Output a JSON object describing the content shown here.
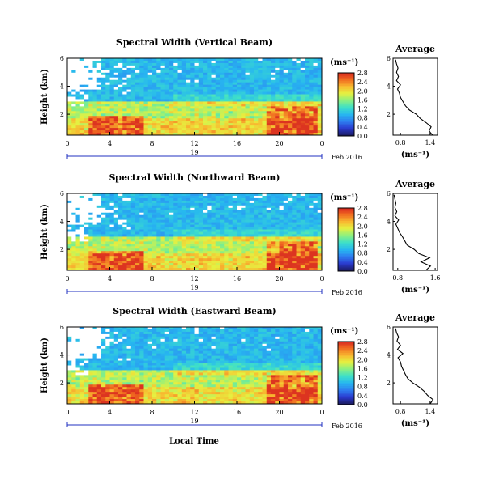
{
  "colors": {
    "colormap": [
      "#1a1a5e",
      "#2b3bd0",
      "#2e7ef0",
      "#27b7f0",
      "#3ee0c8",
      "#8cf080",
      "#e6f040",
      "#f8b830",
      "#f06a20",
      "#d42020"
    ],
    "nodata": "#ffffff",
    "line": "#000000",
    "date_axis": "#2030c0"
  },
  "footer": {
    "xlabel": "Local Time"
  },
  "chart_data": [
    {
      "type": "heatmap",
      "title": "Spectral Width (Vertical Beam)",
      "ylabel": "Height (km)",
      "ylim": [
        0.5,
        6
      ],
      "yticks": [
        "2",
        "4",
        "6"
      ],
      "xlim": [
        0,
        24
      ],
      "xticks": [
        "0",
        "4",
        "8",
        "12",
        "16",
        "20",
        "0"
      ],
      "date_ticks": [
        "19"
      ],
      "date_label": "Feb 2016",
      "colorbar": {
        "unit": "(ms⁻¹)",
        "range": [
          0,
          2.8
        ],
        "ticks": [
          "2.8",
          "2.4",
          "2.0",
          "1.6",
          "1.2",
          "0.8",
          "0.4",
          "0.0"
        ]
      },
      "profile": {
        "title": "Average",
        "xlabel": "(ms⁻¹)",
        "xticks": [
          "0.8",
          "1.4"
        ],
        "yticks": [
          "2",
          "4",
          "6"
        ],
        "xlim": [
          0.65,
          1.55
        ],
        "ylim": [
          0.5,
          6
        ],
        "height_km": [
          0.5,
          0.8,
          1.1,
          1.4,
          1.7,
          2.0,
          2.3,
          2.6,
          2.9,
          3.2,
          3.5,
          3.8,
          4.1,
          4.4,
          4.7,
          5.0,
          5.3,
          5.6,
          5.9
        ],
        "width": [
          1.45,
          1.38,
          1.42,
          1.32,
          1.2,
          1.12,
          0.98,
          0.9,
          0.85,
          0.8,
          0.78,
          0.74,
          0.8,
          0.72,
          0.76,
          0.72,
          0.75,
          0.72,
          0.7
        ]
      }
    },
    {
      "type": "heatmap",
      "title": "Spectral Width (Northward Beam)",
      "ylabel": "Height (km)",
      "ylim": [
        0.5,
        6
      ],
      "yticks": [
        "2",
        "4",
        "6"
      ],
      "xlim": [
        0,
        24
      ],
      "xticks": [
        "0",
        "4",
        "8",
        "12",
        "16",
        "20",
        "0"
      ],
      "date_ticks": [
        "19"
      ],
      "date_label": "Feb 2016",
      "colorbar": {
        "unit": "(ms⁻¹)",
        "range": [
          0,
          2.8
        ],
        "ticks": [
          "2.8",
          "2.4",
          "2.0",
          "1.6",
          "1.2",
          "0.8",
          "0.4",
          "0.0"
        ]
      },
      "profile": {
        "title": "Average",
        "xlabel": "(ms⁻¹)",
        "xticks": [
          "0.8",
          "1.6"
        ],
        "yticks": [
          "2",
          "4",
          "6"
        ],
        "xlim": [
          0.7,
          1.65
        ],
        "ylim": [
          0.5,
          6
        ],
        "height_km": [
          0.5,
          0.8,
          1.1,
          1.4,
          1.7,
          2.0,
          2.3,
          2.6,
          2.9,
          3.2,
          3.5,
          3.8,
          4.1,
          4.4,
          4.7,
          5.0,
          5.3,
          5.6,
          5.9
        ],
        "width": [
          1.4,
          1.5,
          1.3,
          1.48,
          1.25,
          1.15,
          1.0,
          0.95,
          0.9,
          0.84,
          0.8,
          0.76,
          0.82,
          0.74,
          0.78,
          0.74,
          0.76,
          0.74,
          0.72
        ]
      }
    },
    {
      "type": "heatmap",
      "title": "Spectral Width (Eastward Beam)",
      "ylabel": "Height (km)",
      "ylim": [
        0.5,
        6
      ],
      "yticks": [
        "2",
        "4",
        "6"
      ],
      "xlim": [
        0,
        24
      ],
      "xticks": [
        "0",
        "4",
        "8",
        "12",
        "16",
        "20",
        "0"
      ],
      "date_ticks": [
        "19"
      ],
      "date_label": "Feb 2016",
      "colorbar": {
        "unit": "(ms⁻¹)",
        "range": [
          0,
          2.8
        ],
        "ticks": [
          "2.8",
          "2.4",
          "2.0",
          "1.6",
          "1.2",
          "0.8",
          "0.4",
          "0.0"
        ]
      },
      "profile": {
        "title": "Average",
        "xlabel": "(ms⁻¹)",
        "xticks": [
          "0.8",
          "1.4"
        ],
        "yticks": [
          "2",
          "4",
          "6"
        ],
        "xlim": [
          0.65,
          1.55
        ],
        "ylim": [
          0.5,
          6
        ],
        "height_km": [
          0.5,
          0.8,
          1.1,
          1.4,
          1.7,
          2.0,
          2.3,
          2.6,
          2.9,
          3.2,
          3.5,
          3.8,
          4.1,
          4.4,
          4.7,
          5.0,
          5.3,
          5.6,
          5.9
        ],
        "width": [
          1.4,
          1.46,
          1.35,
          1.28,
          1.18,
          1.05,
          0.95,
          0.9,
          0.86,
          0.82,
          0.8,
          0.75,
          0.85,
          0.74,
          0.8,
          0.73,
          0.76,
          0.72,
          0.7
        ]
      }
    }
  ]
}
